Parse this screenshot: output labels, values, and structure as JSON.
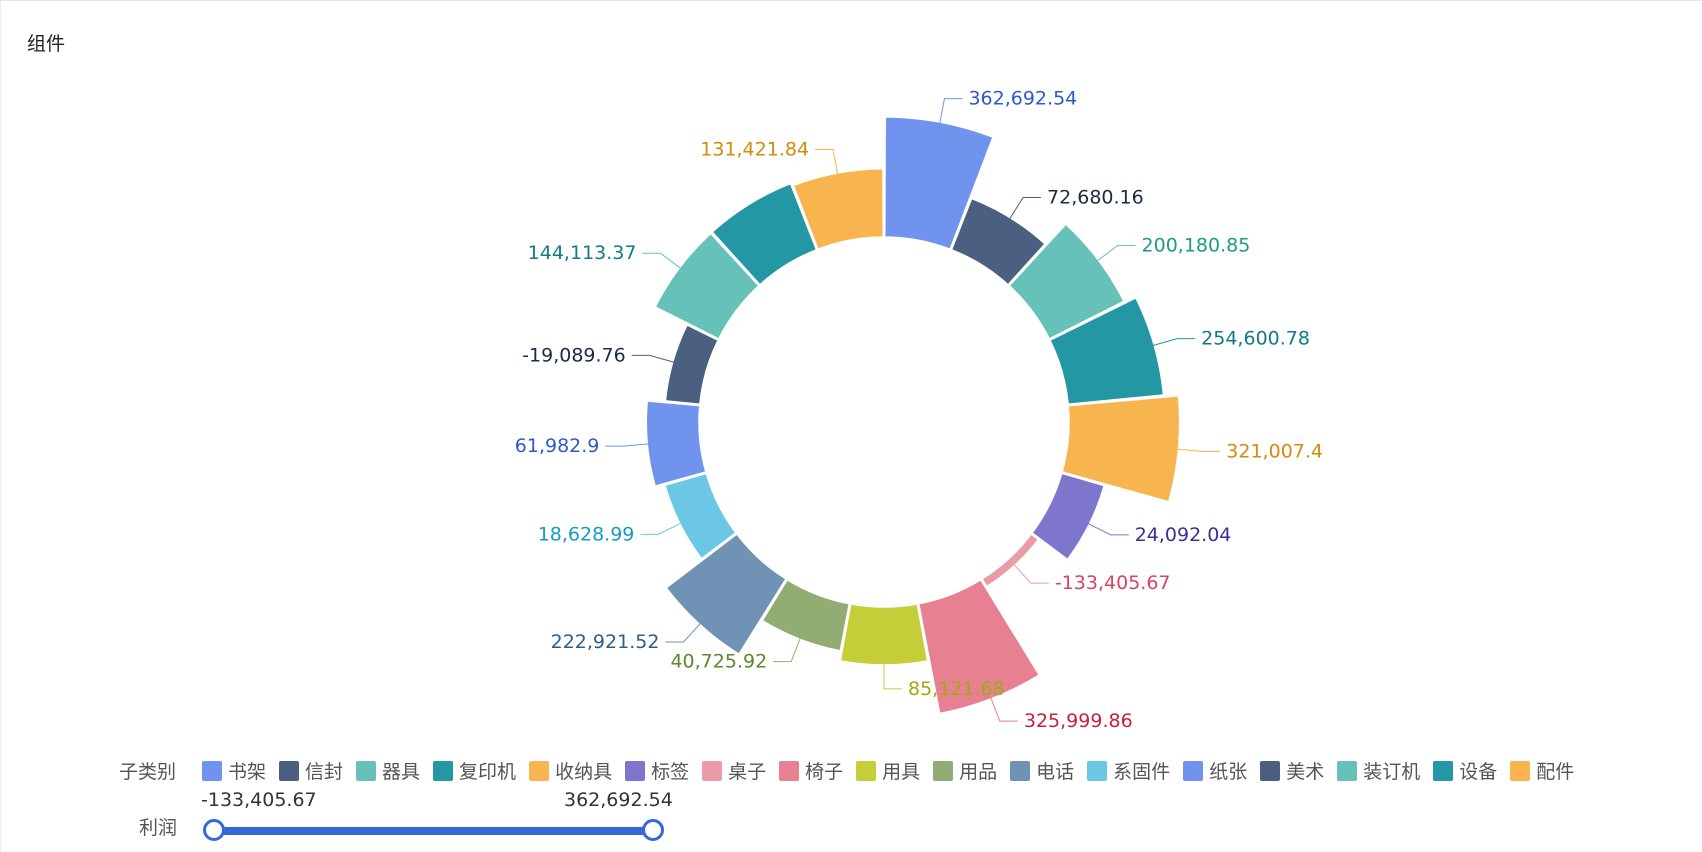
{
  "panel": {
    "title": "组件"
  },
  "chart_data": {
    "type": "pie",
    "variant": "rose-donut",
    "legend_title": "子类别",
    "legend_position": "bottom-left",
    "slices": [
      {
        "name": "书架",
        "value": 362692.54,
        "label": "362,692.54",
        "color": "#7094ed",
        "label_color": "#2d5acb"
      },
      {
        "name": "信封",
        "value": 72680.16,
        "label": "72,680.16",
        "color": "#4b5f80",
        "label_color": "#1b2b45"
      },
      {
        "name": "器具",
        "value": 200180.85,
        "label": "200,180.85",
        "color": "#66c1b9",
        "label_color": "#1e9a8c"
      },
      {
        "name": "复印机",
        "value": 254600.78,
        "label": "254,600.78",
        "color": "#2397a3",
        "label_color": "#137a85"
      },
      {
        "name": "收纳具",
        "value": 321007.4,
        "label": "321,007.4",
        "color": "#f8b54f",
        "label_color": "#d58a0e"
      },
      {
        "name": "标签",
        "value": 24092.04,
        "label": "24,092.04",
        "color": "#7e75cc",
        "label_color": "#3a2f9a"
      },
      {
        "name": "桌子",
        "value": -133405.67,
        "label": "-133,405.67",
        "color": "#e99ca8",
        "label_color": "#d94462"
      },
      {
        "name": "椅子",
        "value": 325999.86,
        "label": "325,999.86",
        "color": "#e78090",
        "label_color": "#c8213d"
      },
      {
        "name": "用具",
        "value": 85121.68,
        "label": "85,121.68",
        "color": "#c5cd39",
        "label_color": "#a3a90f"
      },
      {
        "name": "用品",
        "value": 40725.92,
        "label": "40,725.92",
        "color": "#92ad73",
        "label_color": "#5c8a2a"
      },
      {
        "name": "电话",
        "value": 222921.52,
        "label": "222,921.52",
        "color": "#6f92b5",
        "label_color": "#2d5d8c"
      },
      {
        "name": "系固件",
        "value": 18628.99,
        "label": "18,628.99",
        "color": "#6cc7e6",
        "label_color": "#189bc3"
      },
      {
        "name": "纸张",
        "value": 61982.9,
        "label": "61,982.9",
        "color": "#7094ed",
        "label_color": "#2d5acb"
      },
      {
        "name": "美术",
        "value": -19089.76,
        "label": "-19,089.76",
        "color": "#4b5f80",
        "label_color": "#1b2b45"
      },
      {
        "name": "装订机",
        "value": 144113.37,
        "label": "144,113.37",
        "color": "#66c1b9",
        "label_color": "#137a85"
      },
      {
        "name": "设备",
        "value": 144113.37,
        "label": "",
        "color": "#2397a3",
        "label_color": "#137a85"
      },
      {
        "name": "配件",
        "value": 131421.84,
        "label": "131,421.84",
        "color": "#f8b54f",
        "label_color": "#d58a0e"
      }
    ]
  },
  "range_filter": {
    "title": "利润",
    "min_label": "-133,405.67",
    "max_label": "362,692.54",
    "min_value": -133405.67,
    "max_value": 362692.54,
    "color": "#3667dd"
  }
}
